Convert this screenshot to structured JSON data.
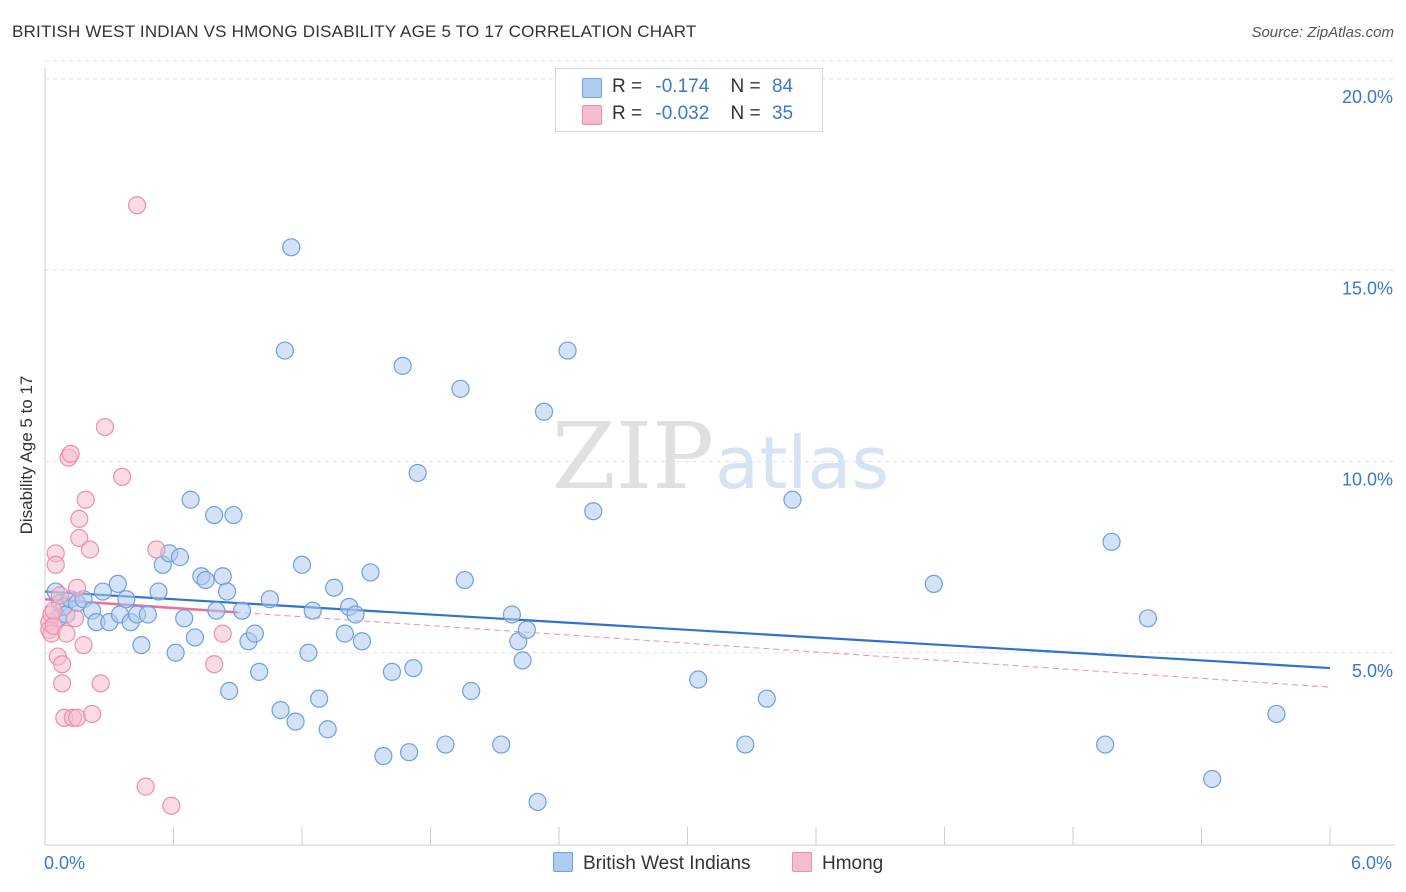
{
  "header": {
    "title": "BRITISH WEST INDIAN VS HMONG DISABILITY AGE 5 TO 17 CORRELATION CHART",
    "source": "Source: ZipAtlas.com"
  },
  "legend": {
    "rows": [
      {
        "r_label": "R =",
        "r_value": "-0.174",
        "n_label": "N =",
        "n_value": "84"
      },
      {
        "r_label": "R =",
        "r_value": "-0.032",
        "n_label": "N =",
        "n_value": "35"
      }
    ]
  },
  "bottom_legend": {
    "series_a": "British West Indians",
    "series_b": "Hmong"
  },
  "watermark": {
    "zip": "ZIP",
    "atlas": "atlas"
  },
  "colors": {
    "blue_fill": "#aecbf0",
    "blue_stroke": "#6f9fdc",
    "blue_line": "#2f72d0",
    "pink_fill": "#f6bccd",
    "pink_stroke": "#ec8fac",
    "pink_line": "#e8709a",
    "axis_text": "#3a78c9"
  },
  "chart_data": {
    "type": "scatter",
    "title": "BRITISH WEST INDIAN VS HMONG DISABILITY AGE 5 TO 17 CORRELATION CHART",
    "xlabel": "",
    "ylabel": "Disability Age 5 to 17",
    "xlim": [
      0,
      6
    ],
    "ylim": [
      0,
      20.5
    ],
    "x_tick_labels": [
      "0.0%",
      "6.0%"
    ],
    "y_ticks": [
      5,
      10,
      15,
      20
    ],
    "y_tick_labels": [
      "5.0%",
      "10.0%",
      "15.0%",
      "20.0%"
    ],
    "grid": true,
    "legend_position": "top-center",
    "series": [
      {
        "name": "British West Indians",
        "color": "#6f9fdc",
        "R": -0.174,
        "N": 84,
        "trend": {
          "x": [
            0,
            6
          ],
          "y": [
            6.6,
            4.6
          ]
        },
        "points": [
          [
            0.05,
            6.6
          ],
          [
            0.06,
            5.9
          ],
          [
            0.07,
            6.3
          ],
          [
            0.09,
            6.2
          ],
          [
            0.1,
            6.0
          ],
          [
            0.12,
            6.4
          ],
          [
            0.15,
            6.3
          ],
          [
            0.18,
            6.4
          ],
          [
            0.22,
            6.1
          ],
          [
            0.24,
            5.8
          ],
          [
            0.27,
            6.6
          ],
          [
            0.3,
            5.8
          ],
          [
            0.34,
            6.8
          ],
          [
            0.35,
            6.0
          ],
          [
            0.38,
            6.4
          ],
          [
            0.4,
            5.8
          ],
          [
            0.43,
            6.0
          ],
          [
            0.45,
            5.2
          ],
          [
            0.48,
            6.0
          ],
          [
            0.53,
            6.6
          ],
          [
            0.55,
            7.3
          ],
          [
            0.58,
            7.6
          ],
          [
            0.61,
            5.0
          ],
          [
            0.63,
            7.5
          ],
          [
            0.65,
            5.9
          ],
          [
            0.68,
            9.0
          ],
          [
            0.7,
            5.4
          ],
          [
            0.73,
            7.0
          ],
          [
            0.75,
            6.9
          ],
          [
            0.79,
            8.6
          ],
          [
            0.8,
            6.1
          ],
          [
            0.83,
            7.0
          ],
          [
            0.85,
            6.6
          ],
          [
            0.86,
            4.0
          ],
          [
            0.88,
            8.6
          ],
          [
            0.92,
            6.1
          ],
          [
            0.95,
            5.3
          ],
          [
            0.98,
            5.5
          ],
          [
            1.0,
            4.5
          ],
          [
            1.05,
            6.4
          ],
          [
            1.1,
            3.5
          ],
          [
            1.12,
            12.9
          ],
          [
            1.15,
            15.6
          ],
          [
            1.17,
            3.2
          ],
          [
            1.2,
            7.3
          ],
          [
            1.23,
            5.0
          ],
          [
            1.25,
            6.1
          ],
          [
            1.28,
            3.8
          ],
          [
            1.32,
            3.0
          ],
          [
            1.35,
            6.7
          ],
          [
            1.4,
            5.5
          ],
          [
            1.42,
            6.2
          ],
          [
            1.45,
            6.0
          ],
          [
            1.48,
            5.3
          ],
          [
            1.52,
            7.1
          ],
          [
            1.58,
            2.3
          ],
          [
            1.62,
            4.5
          ],
          [
            1.67,
            12.5
          ],
          [
            1.7,
            2.4
          ],
          [
            1.72,
            4.6
          ],
          [
            1.74,
            9.7
          ],
          [
            1.87,
            2.6
          ],
          [
            1.94,
            11.9
          ],
          [
            1.96,
            6.9
          ],
          [
            1.99,
            4.0
          ],
          [
            2.13,
            2.6
          ],
          [
            2.18,
            6.0
          ],
          [
            2.21,
            5.3
          ],
          [
            2.23,
            4.8
          ],
          [
            2.25,
            5.6
          ],
          [
            2.3,
            1.1
          ],
          [
            2.33,
            11.3
          ],
          [
            2.44,
            12.9
          ],
          [
            2.56,
            8.7
          ],
          [
            3.05,
            4.3
          ],
          [
            3.27,
            2.6
          ],
          [
            3.37,
            3.8
          ],
          [
            3.49,
            9.0
          ],
          [
            4.15,
            6.8
          ],
          [
            4.95,
            2.6
          ],
          [
            4.98,
            7.9
          ],
          [
            5.15,
            5.9
          ],
          [
            5.45,
            1.7
          ],
          [
            5.75,
            3.4
          ]
        ]
      },
      {
        "name": "Hmong",
        "color": "#ec8fac",
        "R": -0.032,
        "N": 35,
        "trend": {
          "x": [
            0,
            6
          ],
          "y": [
            6.4,
            4.1
          ]
        },
        "points": [
          [
            0.02,
            5.8
          ],
          [
            0.02,
            5.6
          ],
          [
            0.03,
            5.5
          ],
          [
            0.03,
            6.0
          ],
          [
            0.04,
            5.7
          ],
          [
            0.04,
            6.1
          ],
          [
            0.05,
            7.6
          ],
          [
            0.05,
            7.3
          ],
          [
            0.06,
            4.9
          ],
          [
            0.07,
            6.5
          ],
          [
            0.08,
            4.2
          ],
          [
            0.08,
            4.7
          ],
          [
            0.09,
            3.3
          ],
          [
            0.1,
            5.5
          ],
          [
            0.11,
            10.1
          ],
          [
            0.12,
            10.2
          ],
          [
            0.13,
            3.3
          ],
          [
            0.14,
            5.9
          ],
          [
            0.15,
            6.7
          ],
          [
            0.15,
            3.3
          ],
          [
            0.16,
            8.0
          ],
          [
            0.16,
            8.5
          ],
          [
            0.18,
            5.2
          ],
          [
            0.19,
            9.0
          ],
          [
            0.21,
            7.7
          ],
          [
            0.22,
            3.4
          ],
          [
            0.26,
            4.2
          ],
          [
            0.28,
            10.9
          ],
          [
            0.36,
            9.6
          ],
          [
            0.43,
            16.7
          ],
          [
            0.47,
            1.5
          ],
          [
            0.52,
            7.7
          ],
          [
            0.59,
            1.0
          ],
          [
            0.79,
            4.7
          ],
          [
            0.83,
            5.5
          ]
        ]
      }
    ]
  }
}
